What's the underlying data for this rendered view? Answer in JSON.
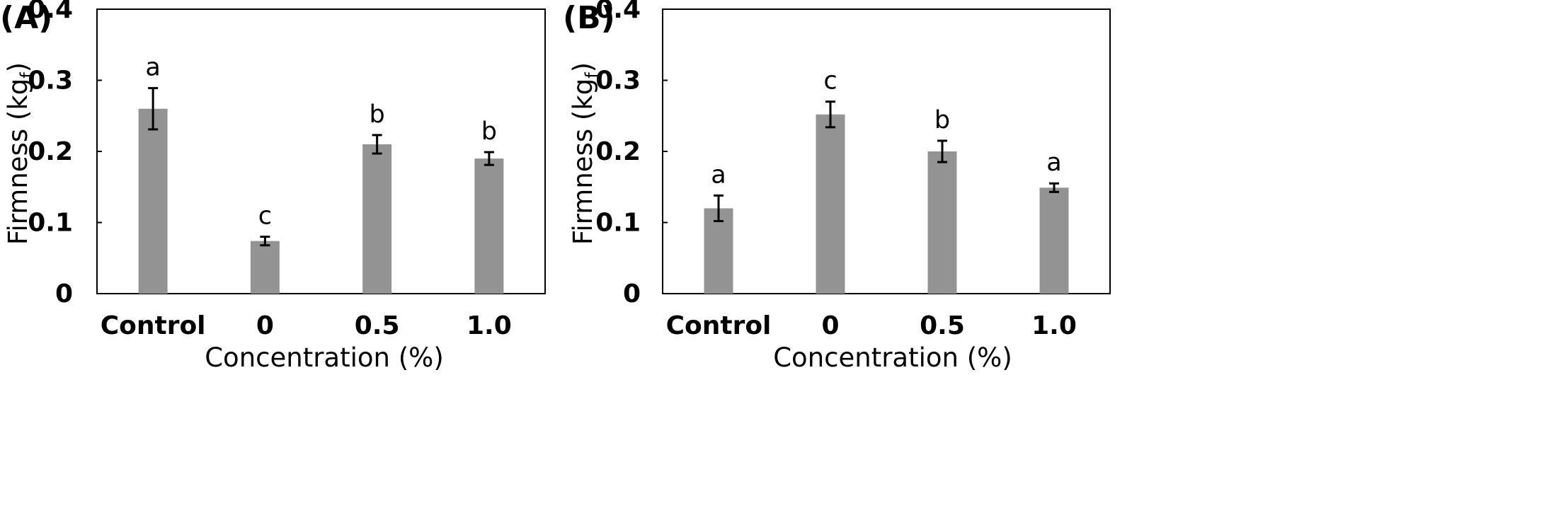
{
  "chart_data": [
    {
      "type": "bar",
      "panel_label": "(A)",
      "categories": [
        "Control",
        "0",
        "0.5",
        "1.0"
      ],
      "values": [
        0.26,
        0.074,
        0.21,
        0.19
      ],
      "errors": [
        0.029,
        0.006,
        0.013,
        0.009
      ],
      "significance_letters": [
        "a",
        "c",
        "b",
        "b"
      ],
      "xlabel": "Concentration (%)",
      "ylabel": "Firmness (kgf)",
      "ylim": [
        0,
        0.4
      ],
      "yticks": [
        0,
        0.1,
        0.2,
        0.3,
        0.4
      ],
      "ytick_labels": [
        "0",
        "0.1",
        "0.2",
        "0.3",
        "0.4"
      ],
      "grid": false,
      "bar_color": "#939393"
    },
    {
      "type": "bar",
      "panel_label": "(B)",
      "categories": [
        "Control",
        "0",
        "0.5",
        "1.0"
      ],
      "values": [
        0.12,
        0.252,
        0.2,
        0.149
      ],
      "errors": [
        0.018,
        0.018,
        0.015,
        0.006
      ],
      "significance_letters": [
        "a",
        "c",
        "b",
        "a"
      ],
      "xlabel": "Concentration (%)",
      "ylabel": "Firmness (kgf)",
      "ylim": [
        0,
        0.4
      ],
      "yticks": [
        0,
        0.1,
        0.2,
        0.3,
        0.4
      ],
      "ytick_labels": [
        "0",
        "0.1",
        "0.2",
        "0.3",
        "0.4"
      ],
      "grid": false,
      "bar_color": "#939393"
    }
  ]
}
